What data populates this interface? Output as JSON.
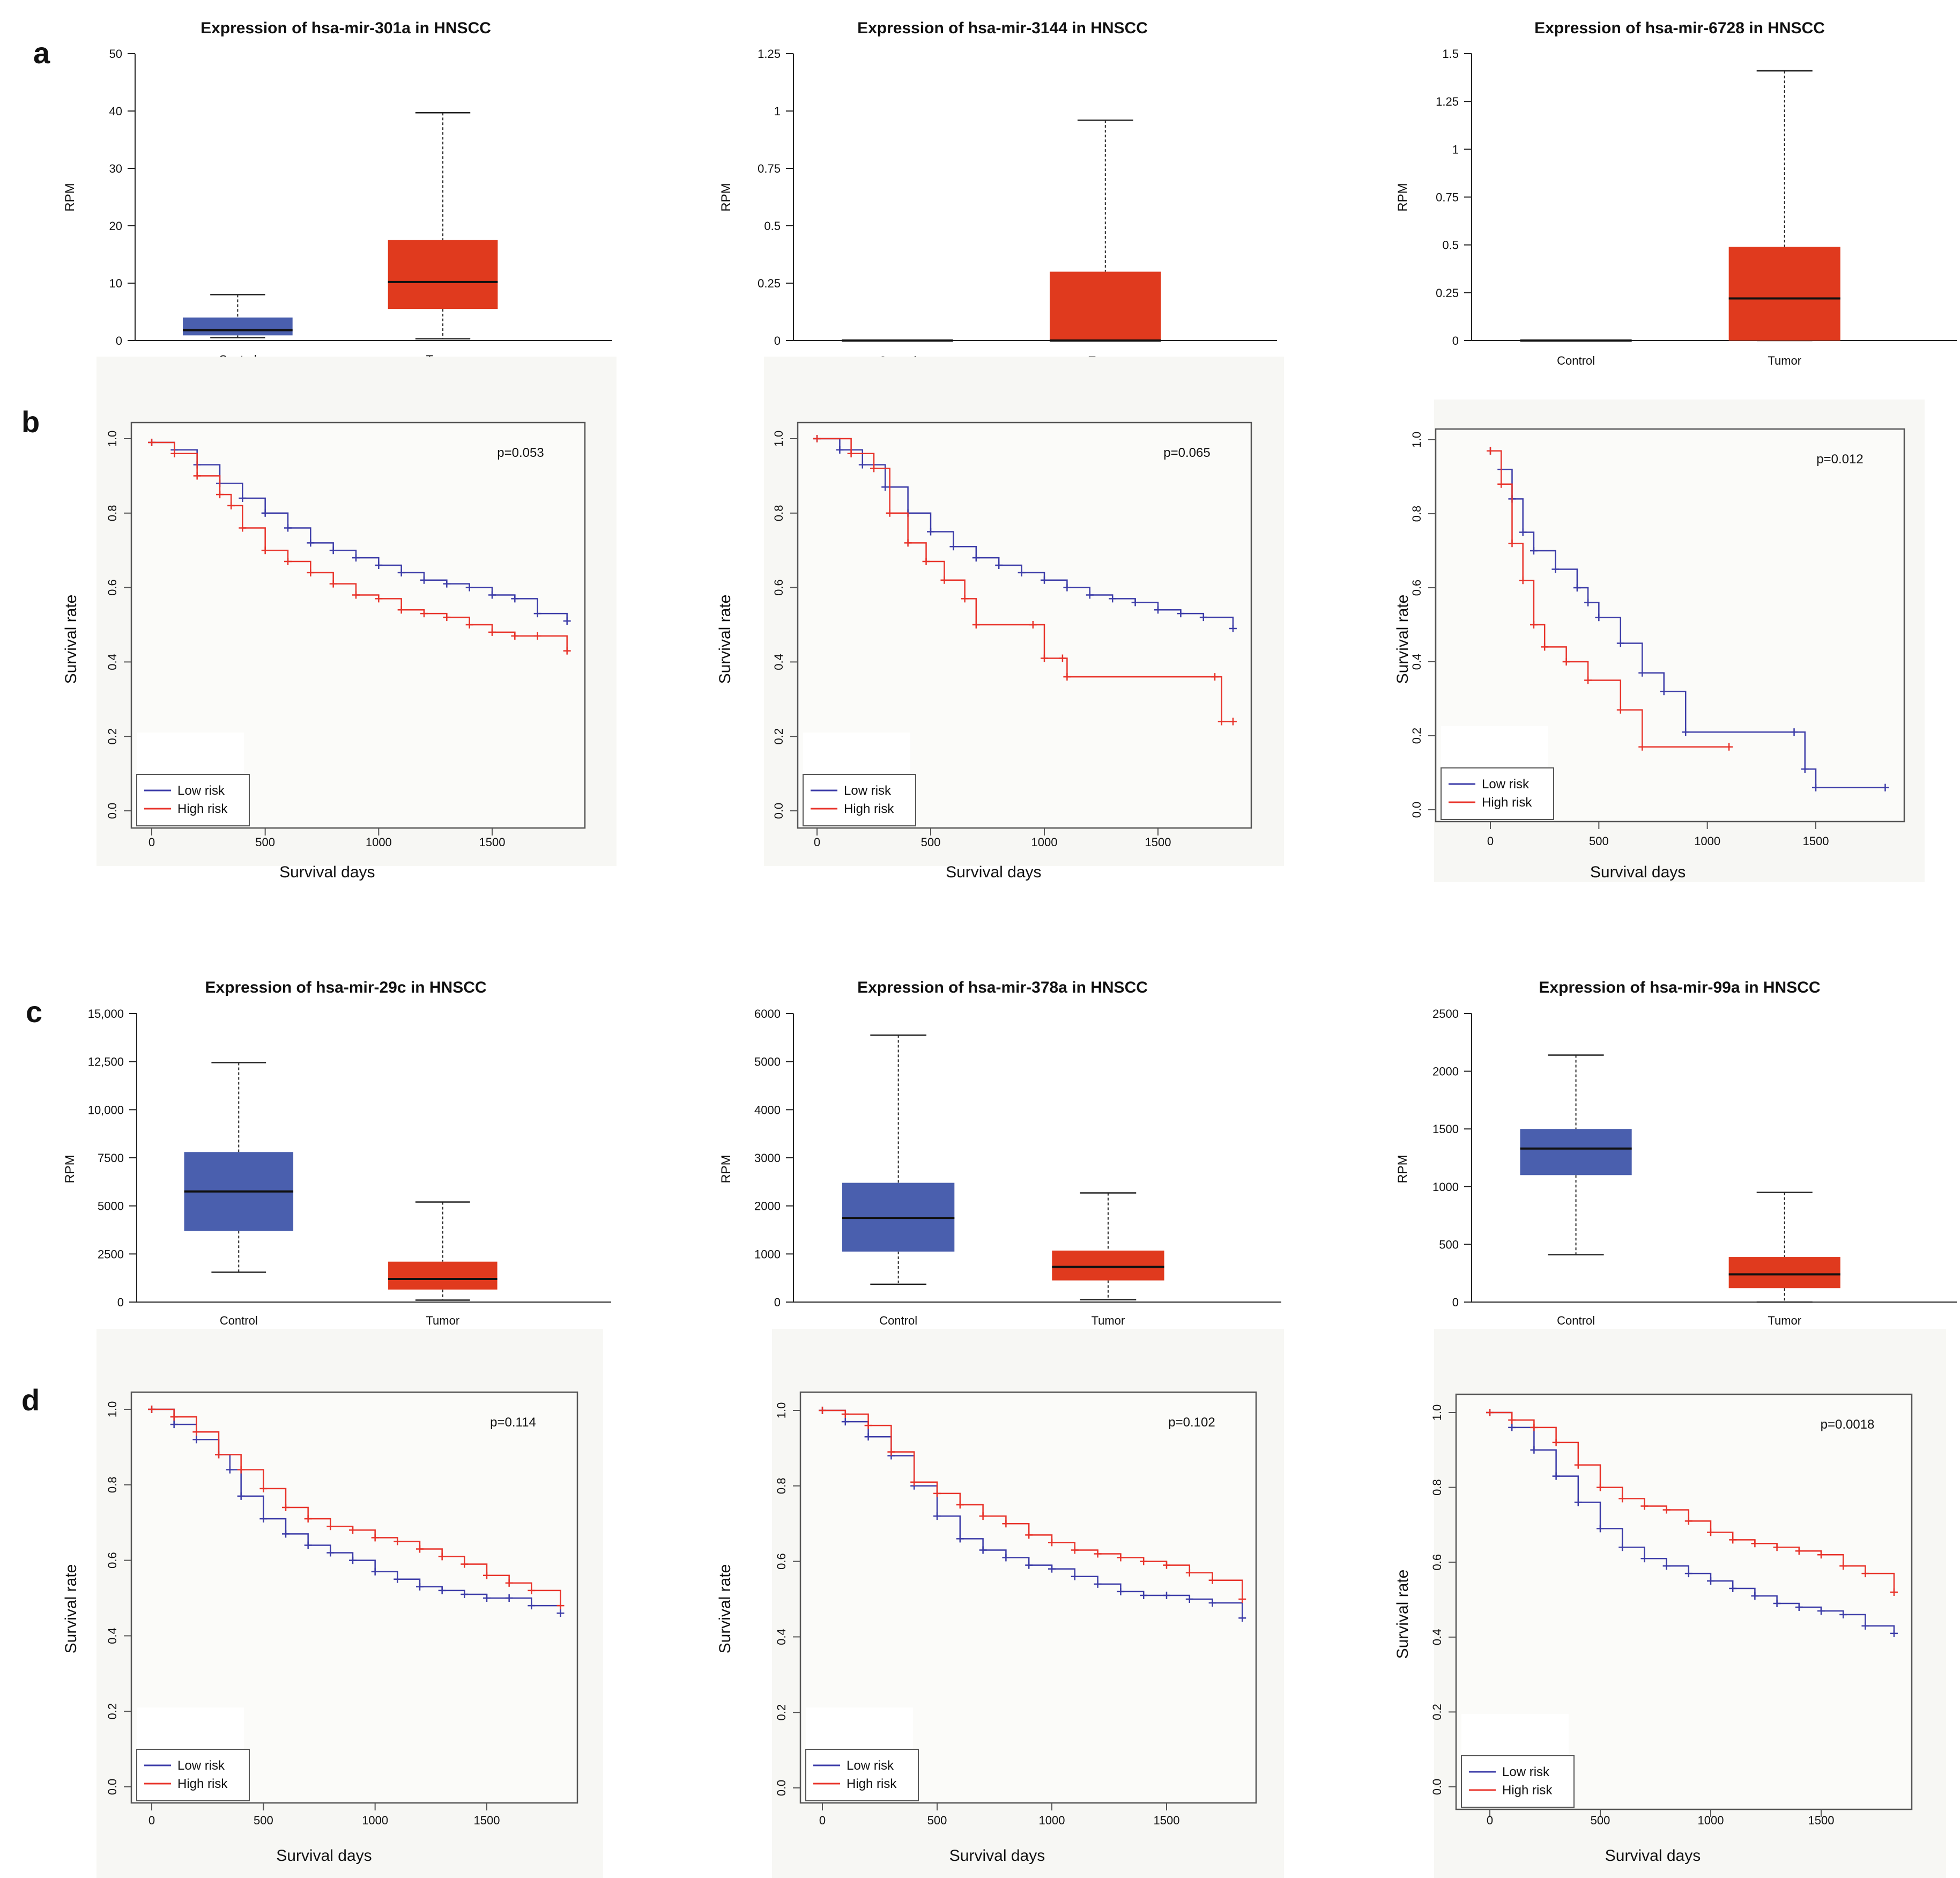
{
  "panel_labels": {
    "a": "a",
    "b": "b",
    "c": "c",
    "d": "d"
  },
  "colors": {
    "control": "#4a5fae",
    "tumor": "#e03a1e",
    "low_risk": "#3c3ca8",
    "high_risk": "#e8332a",
    "survival_bg": "#f7f7f4"
  },
  "box_plots": [
    {
      "title": "Expression of hsa-mir-301a in HNSCC",
      "ylabel": "RPM",
      "ymax": 50,
      "yticks": [
        0,
        10,
        20,
        30,
        40,
        50
      ],
      "ytick_labels": [
        "0",
        "10",
        "20",
        "30",
        "40",
        "50"
      ],
      "categories": [
        "Control",
        "Tumor"
      ],
      "groups": [
        {
          "name": "Control",
          "min": 0.5,
          "q1": 0.9,
          "median": 1.8,
          "q3": 4.0,
          "max": 8.0
        },
        {
          "name": "Tumor",
          "min": 0.3,
          "q1": 5.5,
          "median": 10.2,
          "q3": 17.5,
          "max": 39.7
        }
      ]
    },
    {
      "title": "Expression of hsa-mir-3144 in HNSCC",
      "ylabel": "RPM",
      "ymax": 1.25,
      "yticks": [
        0,
        0.25,
        0.5,
        0.75,
        1,
        1.25
      ],
      "ytick_labels": [
        "0",
        "0.25",
        "0.5",
        "0.75",
        "1",
        "1.25"
      ],
      "categories": [
        "Control",
        "Tumor"
      ],
      "groups": [
        {
          "name": "Control",
          "min": 0,
          "q1": 0,
          "median": 0,
          "q3": 0,
          "max": 0
        },
        {
          "name": "Tumor",
          "min": 0,
          "q1": 0,
          "median": 0,
          "q3": 0.3,
          "max": 0.96
        }
      ]
    },
    {
      "title": "Expression of hsa-mir-6728 in HNSCC",
      "ylabel": "RPM",
      "ymax": 1.5,
      "yticks": [
        0,
        0.25,
        0.5,
        0.75,
        1,
        1.25,
        1.5
      ],
      "ytick_labels": [
        "0",
        "0.25",
        "0.5",
        "0.75",
        "1",
        "1.25",
        "1.5"
      ],
      "categories": [
        "Control",
        "Tumor"
      ],
      "groups": [
        {
          "name": "Control",
          "min": 0,
          "q1": 0,
          "median": 0,
          "q3": 0,
          "max": 0
        },
        {
          "name": "Tumor",
          "min": 0,
          "q1": 0,
          "median": 0.22,
          "q3": 0.49,
          "max": 1.41
        }
      ]
    },
    {
      "title": "Expression of hsa-mir-29c in HNSCC",
      "ylabel": "RPM",
      "ymax": 15000,
      "yticks": [
        0,
        2500,
        5000,
        7500,
        10000,
        12500,
        15000
      ],
      "ytick_labels": [
        "0",
        "2500",
        "5000",
        "7500",
        "10,000",
        "12,500",
        "15,000"
      ],
      "categories": [
        "Control",
        "Tumor"
      ],
      "groups": [
        {
          "name": "Control",
          "min": 1550,
          "q1": 3700,
          "median": 5750,
          "q3": 7800,
          "max": 12450
        },
        {
          "name": "Tumor",
          "min": 100,
          "q1": 650,
          "median": 1200,
          "q3": 2100,
          "max": 5200
        }
      ]
    },
    {
      "title": "Expression of hsa-mir-378a in HNSCC",
      "ylabel": "RPM",
      "ymax": 6000,
      "yticks": [
        0,
        1000,
        2000,
        3000,
        4000,
        5000,
        6000
      ],
      "ytick_labels": [
        "0",
        "1000",
        "2000",
        "3000",
        "4000",
        "5000",
        "6000"
      ],
      "categories": [
        "Control",
        "Tumor"
      ],
      "groups": [
        {
          "name": "Control",
          "min": 370,
          "q1": 1050,
          "median": 1750,
          "q3": 2480,
          "max": 5550
        },
        {
          "name": "Tumor",
          "min": 50,
          "q1": 450,
          "median": 730,
          "q3": 1070,
          "max": 2270
        }
      ]
    },
    {
      "title": "Expression of hsa-mir-99a in HNSCC",
      "ylabel": "RPM",
      "ymax": 2500,
      "yticks": [
        0,
        500,
        1000,
        1500,
        2000,
        2500
      ],
      "ytick_labels": [
        "0",
        "500",
        "1000",
        "1500",
        "2000",
        "2500"
      ],
      "categories": [
        "Control",
        "Tumor"
      ],
      "groups": [
        {
          "name": "Control",
          "min": 410,
          "q1": 1100,
          "median": 1330,
          "q3": 1500,
          "max": 2140
        },
        {
          "name": "Tumor",
          "min": 0,
          "q1": 120,
          "median": 240,
          "q3": 390,
          "max": 950
        }
      ]
    }
  ],
  "survival_plots": [
    {
      "p_value": "p=0.053",
      "xlabel": "Survival days",
      "ylabel": "Survival rate",
      "xticks": [
        0,
        500,
        1000,
        1500
      ],
      "yticks": [
        "0.0",
        "0.2",
        "0.4",
        "0.6",
        "0.8",
        "1.0"
      ],
      "legend": [
        "Low risk",
        "High risk"
      ],
      "low_risk": [
        [
          0,
          0.99
        ],
        [
          100,
          0.97
        ],
        [
          200,
          0.93
        ],
        [
          300,
          0.88
        ],
        [
          400,
          0.84
        ],
        [
          500,
          0.8
        ],
        [
          600,
          0.76
        ],
        [
          700,
          0.72
        ],
        [
          800,
          0.7
        ],
        [
          900,
          0.68
        ],
        [
          1000,
          0.66
        ],
        [
          1100,
          0.64
        ],
        [
          1200,
          0.62
        ],
        [
          1300,
          0.61
        ],
        [
          1400,
          0.6
        ],
        [
          1500,
          0.58
        ],
        [
          1600,
          0.57
        ],
        [
          1700,
          0.53
        ],
        [
          1830,
          0.51
        ]
      ],
      "high_risk": [
        [
          0,
          0.99
        ],
        [
          100,
          0.96
        ],
        [
          200,
          0.9
        ],
        [
          300,
          0.85
        ],
        [
          350,
          0.82
        ],
        [
          400,
          0.76
        ],
        [
          500,
          0.7
        ],
        [
          600,
          0.67
        ],
        [
          700,
          0.64
        ],
        [
          800,
          0.61
        ],
        [
          900,
          0.58
        ],
        [
          1000,
          0.57
        ],
        [
          1100,
          0.54
        ],
        [
          1200,
          0.53
        ],
        [
          1300,
          0.52
        ],
        [
          1400,
          0.5
        ],
        [
          1500,
          0.48
        ],
        [
          1600,
          0.47
        ],
        [
          1700,
          0.47
        ],
        [
          1830,
          0.43
        ]
      ]
    },
    {
      "p_value": "p=0.065",
      "xlabel": "Survival days",
      "ylabel": "Survival rate",
      "xticks": [
        0,
        500,
        1000,
        1500
      ],
      "yticks": [
        "0.0",
        "0.2",
        "0.4",
        "0.6",
        "0.8",
        "1.0"
      ],
      "legend": [
        "Low risk",
        "High risk"
      ],
      "low_risk": [
        [
          0,
          1.0
        ],
        [
          100,
          0.97
        ],
        [
          200,
          0.93
        ],
        [
          300,
          0.87
        ],
        [
          400,
          0.8
        ],
        [
          500,
          0.75
        ],
        [
          600,
          0.71
        ],
        [
          700,
          0.68
        ],
        [
          800,
          0.66
        ],
        [
          900,
          0.64
        ],
        [
          1000,
          0.62
        ],
        [
          1100,
          0.6
        ],
        [
          1200,
          0.58
        ],
        [
          1300,
          0.57
        ],
        [
          1400,
          0.56
        ],
        [
          1500,
          0.54
        ],
        [
          1600,
          0.53
        ],
        [
          1700,
          0.52
        ],
        [
          1830,
          0.49
        ]
      ],
      "high_risk": [
        [
          0,
          1.0
        ],
        [
          150,
          0.96
        ],
        [
          250,
          0.92
        ],
        [
          320,
          0.8
        ],
        [
          400,
          0.72
        ],
        [
          480,
          0.67
        ],
        [
          560,
          0.62
        ],
        [
          650,
          0.57
        ],
        [
          700,
          0.5
        ],
        [
          950,
          0.5
        ],
        [
          1000,
          0.41
        ],
        [
          1080,
          0.41
        ],
        [
          1100,
          0.36
        ],
        [
          1750,
          0.36
        ],
        [
          1780,
          0.24
        ],
        [
          1830,
          0.24
        ]
      ]
    },
    {
      "p_value": "p=0.012",
      "xlabel": "Survival days",
      "ylabel": "Survival rate",
      "xticks": [
        0,
        500,
        1000,
        1500
      ],
      "yticks": [
        "0.0",
        "0.2",
        "0.4",
        "0.6",
        "0.8",
        "1.0"
      ],
      "legend": [
        "Low risk",
        "High risk"
      ],
      "low_risk": [
        [
          0,
          0.97
        ],
        [
          50,
          0.92
        ],
        [
          100,
          0.84
        ],
        [
          150,
          0.75
        ],
        [
          200,
          0.7
        ],
        [
          300,
          0.65
        ],
        [
          400,
          0.6
        ],
        [
          450,
          0.56
        ],
        [
          500,
          0.52
        ],
        [
          600,
          0.45
        ],
        [
          700,
          0.37
        ],
        [
          800,
          0.32
        ],
        [
          900,
          0.21
        ],
        [
          1400,
          0.21
        ],
        [
          1450,
          0.11
        ],
        [
          1500,
          0.06
        ],
        [
          1820,
          0.06
        ]
      ],
      "high_risk": [
        [
          0,
          0.97
        ],
        [
          50,
          0.88
        ],
        [
          100,
          0.72
        ],
        [
          150,
          0.62
        ],
        [
          200,
          0.5
        ],
        [
          250,
          0.44
        ],
        [
          350,
          0.4
        ],
        [
          450,
          0.35
        ],
        [
          600,
          0.27
        ],
        [
          700,
          0.17
        ],
        [
          1100,
          0.17
        ]
      ]
    },
    {
      "p_value": "p=0.114",
      "xlabel": "Survival days",
      "ylabel": "Survival rate",
      "xticks": [
        0,
        500,
        1000,
        1500
      ],
      "yticks": [
        "0.0",
        "0.2",
        "0.4",
        "0.6",
        "0.8",
        "1.0"
      ],
      "legend": [
        "Low risk",
        "High risk"
      ],
      "low_risk": [
        [
          0,
          1.0
        ],
        [
          100,
          0.96
        ],
        [
          200,
          0.92
        ],
        [
          300,
          0.88
        ],
        [
          350,
          0.84
        ],
        [
          400,
          0.77
        ],
        [
          500,
          0.71
        ],
        [
          600,
          0.67
        ],
        [
          700,
          0.64
        ],
        [
          800,
          0.62
        ],
        [
          900,
          0.6
        ],
        [
          1000,
          0.57
        ],
        [
          1100,
          0.55
        ],
        [
          1200,
          0.53
        ],
        [
          1300,
          0.52
        ],
        [
          1400,
          0.51
        ],
        [
          1500,
          0.5
        ],
        [
          1600,
          0.5
        ],
        [
          1700,
          0.48
        ],
        [
          1830,
          0.46
        ]
      ],
      "high_risk": [
        [
          0,
          1.0
        ],
        [
          100,
          0.98
        ],
        [
          200,
          0.94
        ],
        [
          300,
          0.88
        ],
        [
          400,
          0.84
        ],
        [
          500,
          0.79
        ],
        [
          600,
          0.74
        ],
        [
          700,
          0.71
        ],
        [
          800,
          0.69
        ],
        [
          900,
          0.68
        ],
        [
          1000,
          0.66
        ],
        [
          1100,
          0.65
        ],
        [
          1200,
          0.63
        ],
        [
          1300,
          0.61
        ],
        [
          1400,
          0.59
        ],
        [
          1500,
          0.56
        ],
        [
          1600,
          0.54
        ],
        [
          1700,
          0.52
        ],
        [
          1830,
          0.48
        ]
      ]
    },
    {
      "p_value": "p=0.102",
      "xlabel": "Survival days",
      "ylabel": "Survival rate",
      "xticks": [
        0,
        500,
        1000,
        1500
      ],
      "yticks": [
        "0.0",
        "0.2",
        "0.4",
        "0.6",
        "0.8",
        "1.0"
      ],
      "legend": [
        "Low risk",
        "High risk"
      ],
      "low_risk": [
        [
          0,
          1.0
        ],
        [
          100,
          0.97
        ],
        [
          200,
          0.93
        ],
        [
          300,
          0.88
        ],
        [
          400,
          0.8
        ],
        [
          500,
          0.72
        ],
        [
          600,
          0.66
        ],
        [
          700,
          0.63
        ],
        [
          800,
          0.61
        ],
        [
          900,
          0.59
        ],
        [
          1000,
          0.58
        ],
        [
          1100,
          0.56
        ],
        [
          1200,
          0.54
        ],
        [
          1300,
          0.52
        ],
        [
          1400,
          0.51
        ],
        [
          1500,
          0.51
        ],
        [
          1600,
          0.5
        ],
        [
          1700,
          0.49
        ],
        [
          1830,
          0.45
        ]
      ],
      "high_risk": [
        [
          0,
          1.0
        ],
        [
          100,
          0.99
        ],
        [
          200,
          0.96
        ],
        [
          300,
          0.89
        ],
        [
          400,
          0.81
        ],
        [
          500,
          0.78
        ],
        [
          600,
          0.75
        ],
        [
          700,
          0.72
        ],
        [
          800,
          0.7
        ],
        [
          900,
          0.67
        ],
        [
          1000,
          0.65
        ],
        [
          1100,
          0.63
        ],
        [
          1200,
          0.62
        ],
        [
          1300,
          0.61
        ],
        [
          1400,
          0.6
        ],
        [
          1500,
          0.59
        ],
        [
          1600,
          0.57
        ],
        [
          1700,
          0.55
        ],
        [
          1830,
          0.5
        ]
      ]
    },
    {
      "p_value": "p=0.0018",
      "xlabel": "Survival days",
      "ylabel": "Survival rate",
      "xticks": [
        0,
        500,
        1000,
        1500
      ],
      "yticks": [
        "0.0",
        "0.2",
        "0.4",
        "0.6",
        "0.8",
        "1.0"
      ],
      "legend": [
        "Low risk",
        "High risk"
      ],
      "low_risk": [
        [
          0,
          1.0
        ],
        [
          100,
          0.96
        ],
        [
          200,
          0.9
        ],
        [
          300,
          0.83
        ],
        [
          400,
          0.76
        ],
        [
          500,
          0.69
        ],
        [
          600,
          0.64
        ],
        [
          700,
          0.61
        ],
        [
          800,
          0.59
        ],
        [
          900,
          0.57
        ],
        [
          1000,
          0.55
        ],
        [
          1100,
          0.53
        ],
        [
          1200,
          0.51
        ],
        [
          1300,
          0.49
        ],
        [
          1400,
          0.48
        ],
        [
          1500,
          0.47
        ],
        [
          1600,
          0.46
        ],
        [
          1700,
          0.43
        ],
        [
          1830,
          0.41
        ]
      ],
      "high_risk": [
        [
          0,
          1.0
        ],
        [
          100,
          0.98
        ],
        [
          200,
          0.96
        ],
        [
          300,
          0.92
        ],
        [
          400,
          0.86
        ],
        [
          500,
          0.8
        ],
        [
          600,
          0.77
        ],
        [
          700,
          0.75
        ],
        [
          800,
          0.74
        ],
        [
          900,
          0.71
        ],
        [
          1000,
          0.68
        ],
        [
          1100,
          0.66
        ],
        [
          1200,
          0.65
        ],
        [
          1300,
          0.64
        ],
        [
          1400,
          0.63
        ],
        [
          1500,
          0.62
        ],
        [
          1600,
          0.59
        ],
        [
          1700,
          0.57
        ],
        [
          1830,
          0.52
        ]
      ]
    }
  ]
}
